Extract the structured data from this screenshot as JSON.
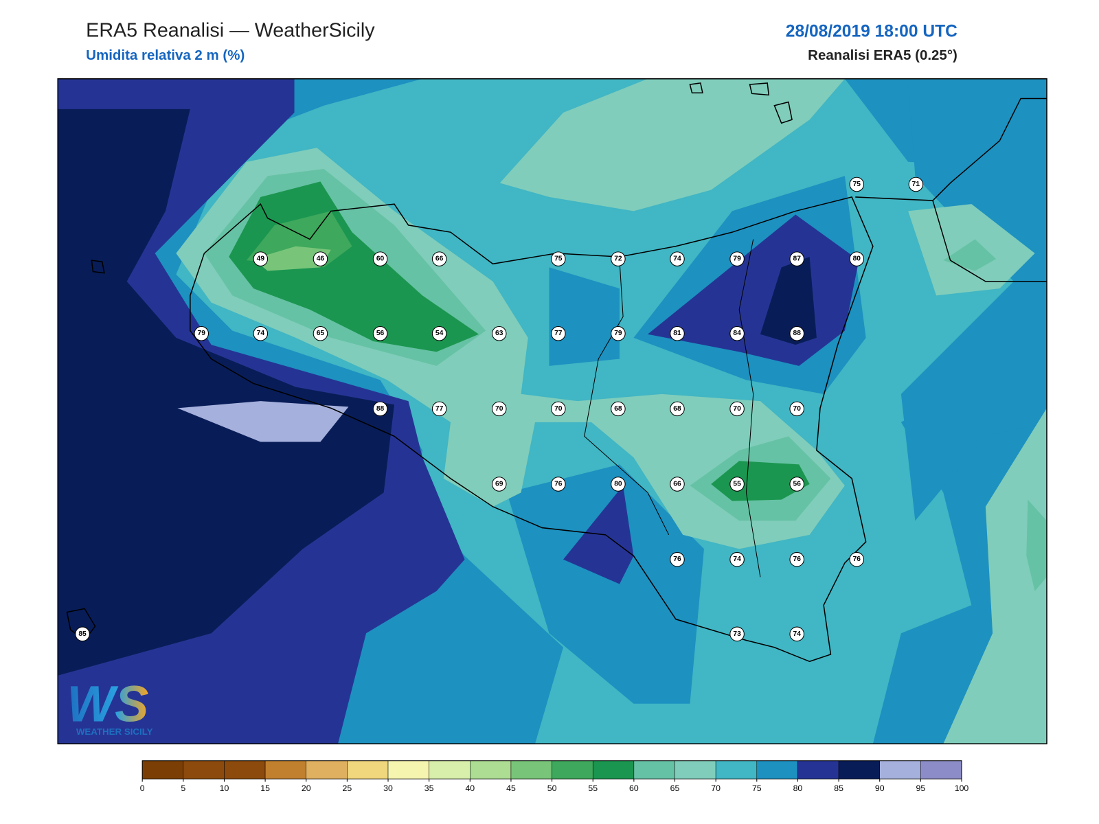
{
  "header": {
    "title": "ERA5 Reanalisi — WeatherSicily",
    "subtitle": "Umidita relativa 2 m (%)",
    "datetime": "28/08/2019 18:00 UTC",
    "source": "Reanalisi ERA5 (0.25°)"
  },
  "stations": [
    75,
    71,
    49,
    46,
    60,
    66,
    75,
    72,
    74,
    79,
    87,
    80,
    79,
    74,
    65,
    56,
    54,
    63,
    77,
    79,
    81,
    84,
    88,
    88,
    77,
    70,
    70,
    68,
    68,
    70,
    70,
    69,
    76,
    80,
    66,
    55,
    56,
    76,
    74,
    76,
    76,
    73,
    74,
    85
  ],
  "colorbar": {
    "ticks": [
      0,
      5,
      10,
      15,
      20,
      25,
      30,
      35,
      40,
      45,
      50,
      55,
      60,
      65,
      70,
      75,
      80,
      85,
      90,
      95,
      100
    ],
    "colors": [
      "#7b3f05",
      "#8c4a0c",
      "#8c4a0c",
      "#c0802e",
      "#dfb060",
      "#f0d67c",
      "#f6f5b0",
      "#d8eeab",
      "#acdd92",
      "#78c57a",
      "#3ea85c",
      "#1b9650",
      "#66c2a4",
      "#80cdbb",
      "#41b6c4",
      "#1d91c0",
      "#253494",
      "#081d58",
      "#a6b0dc",
      "#8c8cc8"
    ]
  },
  "logo": {
    "mark": "WS",
    "name": "WEATHER SICILY"
  }
}
